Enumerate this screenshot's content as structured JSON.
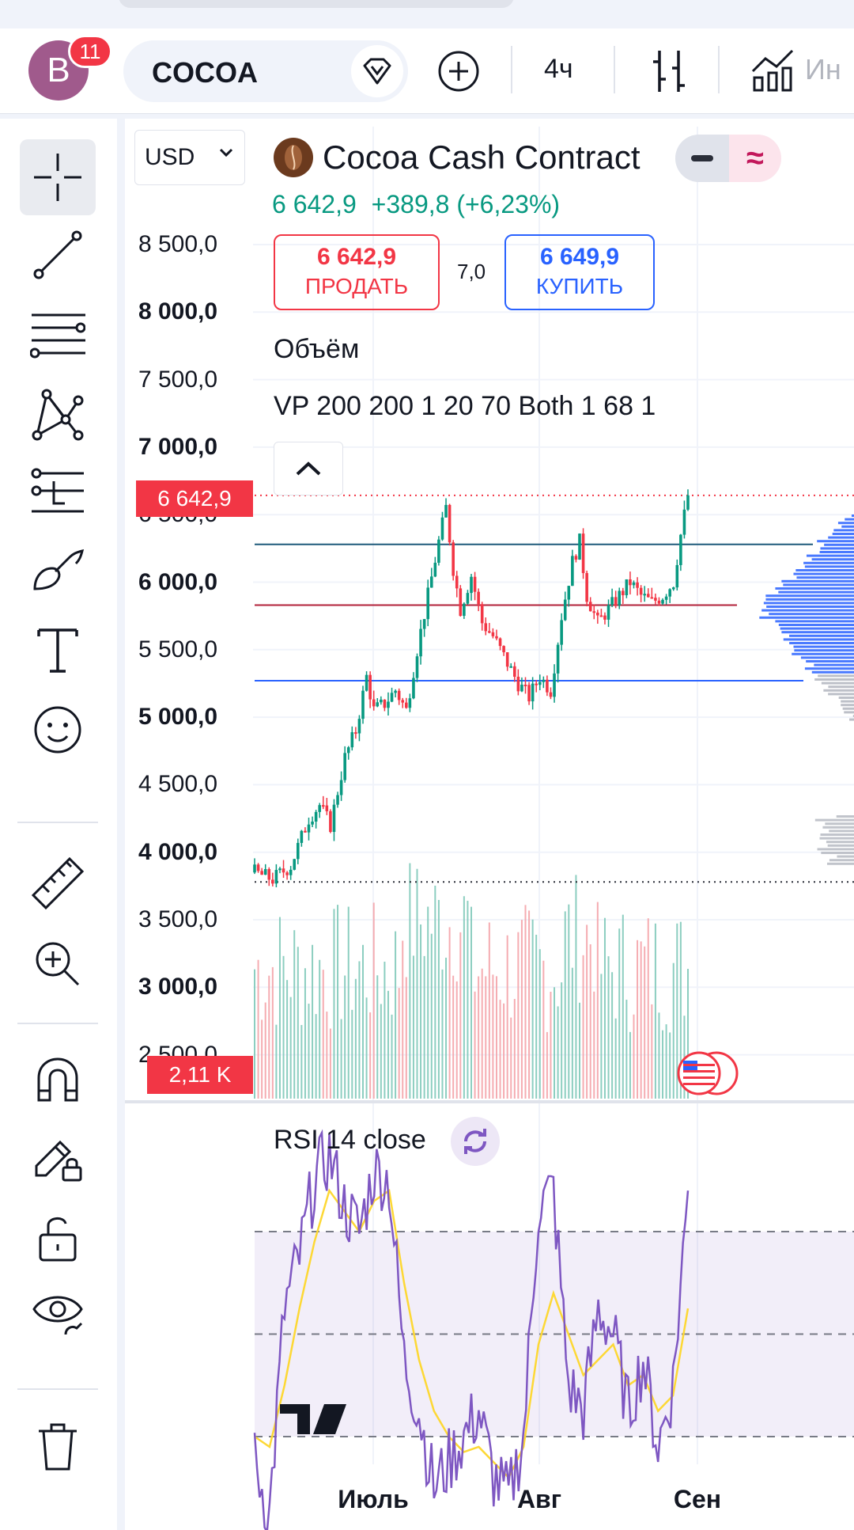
{
  "header": {
    "avatar_letter": "B",
    "notifications_count": "11",
    "symbol": "COCOA",
    "timeframe": "4ч",
    "indicators_label": "Ин"
  },
  "tools": [
    {
      "name": "crosshair-icon",
      "active": true
    },
    {
      "name": "trend-line-icon"
    },
    {
      "name": "fib-retracement-icon"
    },
    {
      "name": "pattern-icon"
    },
    {
      "name": "long-position-icon"
    },
    {
      "name": "brush-icon"
    },
    {
      "name": "text-tool-icon"
    },
    {
      "name": "emoji-icon"
    },
    {
      "name": "ruler-icon"
    },
    {
      "name": "zoom-in-icon"
    },
    {
      "name": "magnet-icon"
    },
    {
      "name": "lock-drawing-icon"
    },
    {
      "name": "unlock-icon"
    },
    {
      "name": "eye-icon"
    },
    {
      "name": "trash-icon"
    }
  ],
  "chart": {
    "currency": "USD",
    "title": "Cocoa Cash Contract",
    "last_price": "6 642,9",
    "change": "+389,8 (+6,23%)",
    "sell": {
      "price": "6 642,9",
      "label": "ПРОДАТЬ"
    },
    "spread": "7,0",
    "buy": {
      "price": "6 649,9",
      "label": "КУПИТЬ"
    },
    "volume_indicator": "Объём",
    "vp_indicator": "VP 200 200 1 20 70 Both 1 68 1",
    "price_tag": "6 642,9",
    "volume_tag": "2,11 K",
    "y_axis": [
      {
        "label": "8 500,0",
        "bold": false
      },
      {
        "label": "8 000,0",
        "bold": true
      },
      {
        "label": "7 500,0",
        "bold": false
      },
      {
        "label": "7 000,0",
        "bold": true
      },
      {
        "label": "6 500,0",
        "bold": false
      },
      {
        "label": "6 000,0",
        "bold": true
      },
      {
        "label": "5 500,0",
        "bold": false
      },
      {
        "label": "5 000,0",
        "bold": true
      },
      {
        "label": "4 500,0",
        "bold": false
      },
      {
        "label": "4 000,0",
        "bold": true
      },
      {
        "label": "3 500,0",
        "bold": false
      },
      {
        "label": "3 000,0",
        "bold": true
      },
      {
        "label": "2 500,0",
        "bold": false
      }
    ],
    "x_axis": [
      "Июль",
      "Авг",
      "Сен"
    ],
    "colors": {
      "up": "#089981",
      "down": "#f23645",
      "rsi": "#7e57c2",
      "rsi_ma": "#fdd835",
      "vp_up": "#2962ff",
      "vp_down": "#b2b5be"
    }
  },
  "rsi": {
    "title": "RSI 14 close"
  },
  "chart_data": {
    "type": "candlestick",
    "title": "Cocoa Cash Contract",
    "timeframe": "4ч",
    "currency": "USD",
    "x_ticks": [
      "Июль",
      "Авг",
      "Сен"
    ],
    "ylim": [
      2500,
      8700
    ],
    "horizontal_levels": [
      6280,
      5830,
      5270
    ],
    "last": 6642.9,
    "close_path": [
      [
        0,
        3850
      ],
      [
        5,
        3800
      ],
      [
        10,
        3900
      ],
      [
        15,
        4250
      ],
      [
        18,
        4350
      ],
      [
        21,
        4200
      ],
      [
        25,
        4700
      ],
      [
        28,
        4900
      ],
      [
        31,
        5300
      ],
      [
        33,
        5050
      ],
      [
        36,
        5100
      ],
      [
        39,
        5200
      ],
      [
        42,
        5050
      ],
      [
        45,
        5500
      ],
      [
        48,
        5900
      ],
      [
        51,
        6300
      ],
      [
        53,
        6550
      ],
      [
        55,
        6100
      ],
      [
        57,
        5800
      ],
      [
        60,
        6050
      ],
      [
        63,
        5700
      ],
      [
        66,
        5600
      ],
      [
        70,
        5400
      ],
      [
        73,
        5250
      ],
      [
        76,
        5150
      ],
      [
        79,
        5300
      ],
      [
        82,
        5200
      ],
      [
        85,
        5750
      ],
      [
        88,
        6150
      ],
      [
        90,
        6300
      ],
      [
        92,
        5900
      ],
      [
        95,
        5700
      ],
      [
        98,
        5800
      ],
      [
        101,
        5900
      ],
      [
        104,
        6000
      ],
      [
        107,
        5900
      ],
      [
        110,
        5850
      ],
      [
        113,
        5900
      ],
      [
        116,
        6000
      ],
      [
        118,
        6350
      ],
      [
        120,
        6642.9
      ]
    ],
    "volume_tag": "2,11 K",
    "rsi": {
      "period": 14,
      "levels": [
        70,
        50,
        30
      ],
      "values": [
        25,
        15,
        55,
        65,
        80,
        85,
        75,
        70,
        82,
        80,
        45,
        35,
        20,
        25,
        30,
        35,
        22,
        18,
        30,
        75,
        78,
        40,
        35,
        55,
        50,
        35,
        45,
        28,
        40,
        78
      ],
      "ma": [
        30,
        28,
        40,
        55,
        68,
        78,
        74,
        70,
        76,
        78,
        60,
        45,
        35,
        30,
        27,
        28,
        25,
        22,
        28,
        48,
        58,
        50,
        42,
        45,
        48,
        40,
        42,
        35,
        38,
        55
      ]
    }
  }
}
